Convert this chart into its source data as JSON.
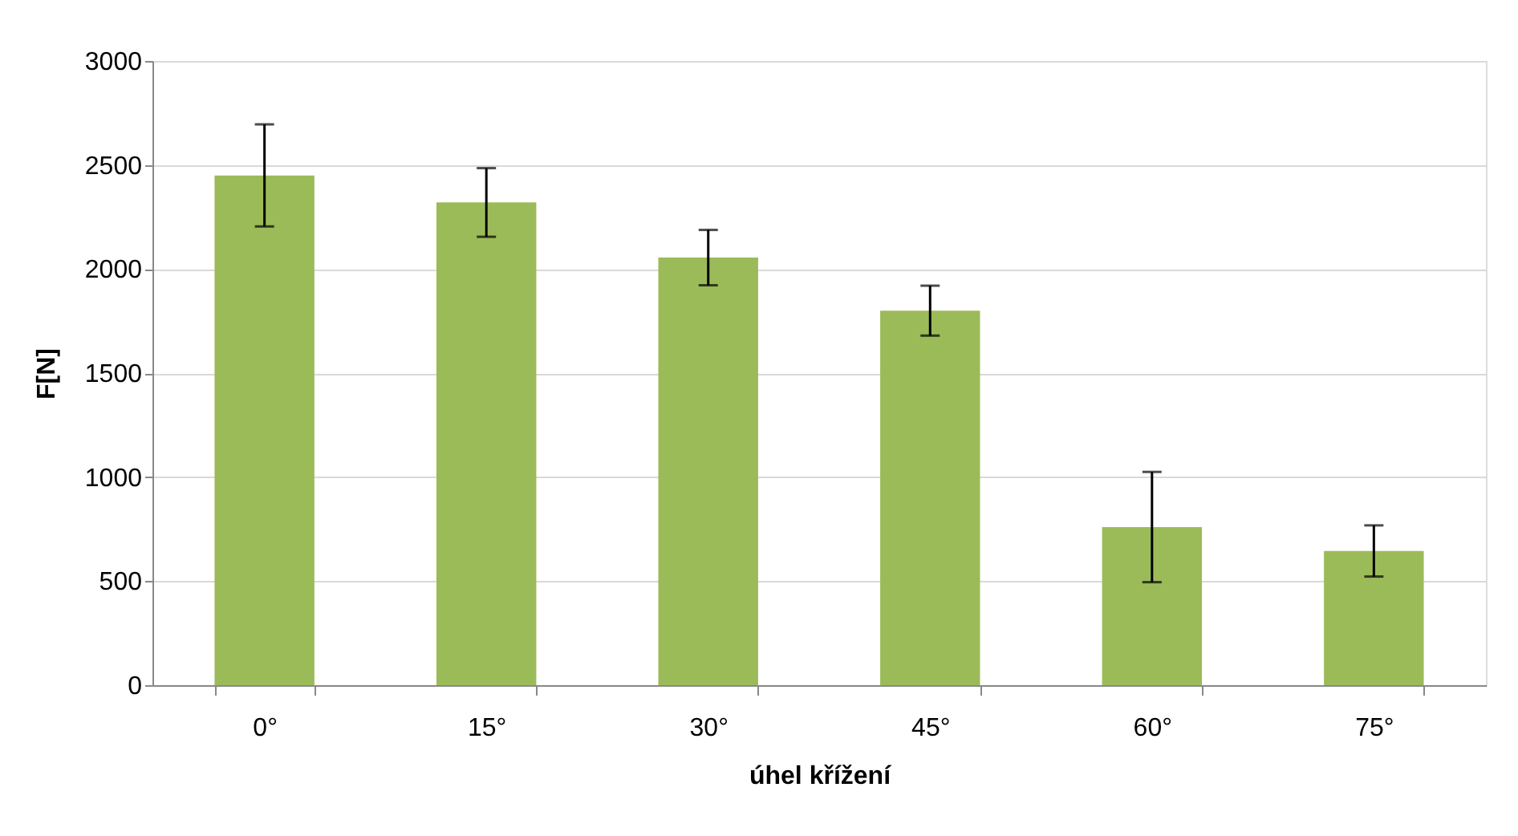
{
  "chart_data": {
    "type": "bar",
    "xlabel": "úhel křížení",
    "ylabel": "F[N]",
    "categories": [
      "0°",
      "15°",
      "30°",
      "45°",
      "60°",
      "75°"
    ],
    "values": [
      2450,
      2320,
      2055,
      1800,
      760,
      645
    ],
    "errors": [
      245,
      165,
      133,
      120,
      265,
      123
    ],
    "color": "#9bbb59",
    "ylim": [
      0,
      3000
    ],
    "yticks": [
      0,
      500,
      1000,
      1500,
      2000,
      2500,
      3000
    ],
    "grid": "y"
  }
}
